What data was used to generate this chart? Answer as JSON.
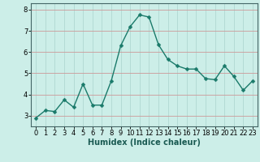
{
  "x": [
    0,
    1,
    2,
    3,
    4,
    5,
    6,
    7,
    8,
    9,
    10,
    11,
    12,
    13,
    14,
    15,
    16,
    17,
    18,
    19,
    20,
    21,
    22,
    23
  ],
  "y": [
    2.9,
    3.25,
    3.2,
    3.75,
    3.4,
    4.5,
    3.5,
    3.5,
    4.65,
    6.3,
    7.2,
    7.75,
    7.65,
    6.35,
    5.65,
    5.35,
    5.2,
    5.2,
    4.75,
    4.7,
    5.35,
    4.85,
    4.2,
    4.65
  ],
  "line_color": "#1a7a6a",
  "marker": "D",
  "marker_size": 2.5,
  "line_width": 1.0,
  "bg_color": "#cceee8",
  "grid_color_x": "#b0d8d2",
  "grid_color_y": "#cc9999",
  "xlabel": "Humidex (Indice chaleur)",
  "xlabel_fontsize": 7,
  "tick_fontsize": 6,
  "ylim": [
    2.5,
    8.3
  ],
  "yticks": [
    3,
    4,
    5,
    6,
    7,
    8
  ],
  "xlim": [
    -0.5,
    23.5
  ]
}
